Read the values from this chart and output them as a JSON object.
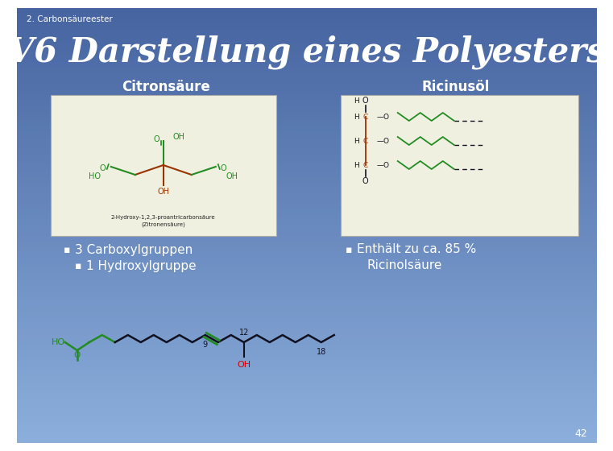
{
  "slide_title": "2. Carbonsäureester",
  "main_title": "V6 Darstellung eines Polyesters",
  "col1_header": "Citronsäure",
  "col2_header": "Ricinusöl",
  "bullet1_1": "3 Carboxylgruppen",
  "bullet1_2": "1 Hydroxylgruppe",
  "bullet2_1": "Enthält zu ca. 85 %",
  "bullet2_2": "Ricinolsäure",
  "page_num": "42",
  "white": "#ffffff",
  "green": "#228B22",
  "red_c": "#993300",
  "dark": "#111122",
  "box_bg": "#f0f0e0",
  "label_black": "#222222",
  "label_red": "#cc2200"
}
